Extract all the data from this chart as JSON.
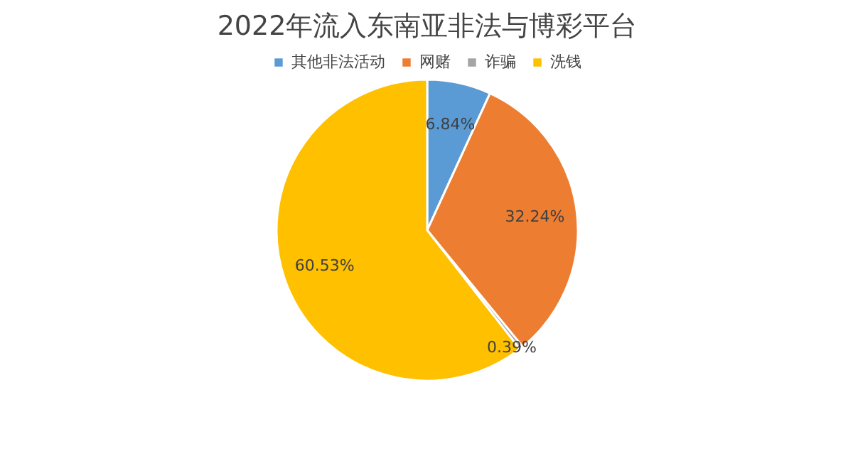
{
  "chart_data": {
    "type": "pie",
    "title": "2022年流入东南亚非法与博彩平台",
    "categories": [
      "其他非法活动",
      "网赌",
      "诈骗",
      "洗钱"
    ],
    "values": [
      6.84,
      32.24,
      0.39,
      60.53
    ],
    "colors": [
      "#5b9bd5",
      "#ed7d31",
      "#a5a5a5",
      "#ffc000"
    ],
    "value_labels": [
      "6.84%",
      "32.24%",
      "0.39%",
      "60.53%"
    ],
    "legend": "top"
  }
}
